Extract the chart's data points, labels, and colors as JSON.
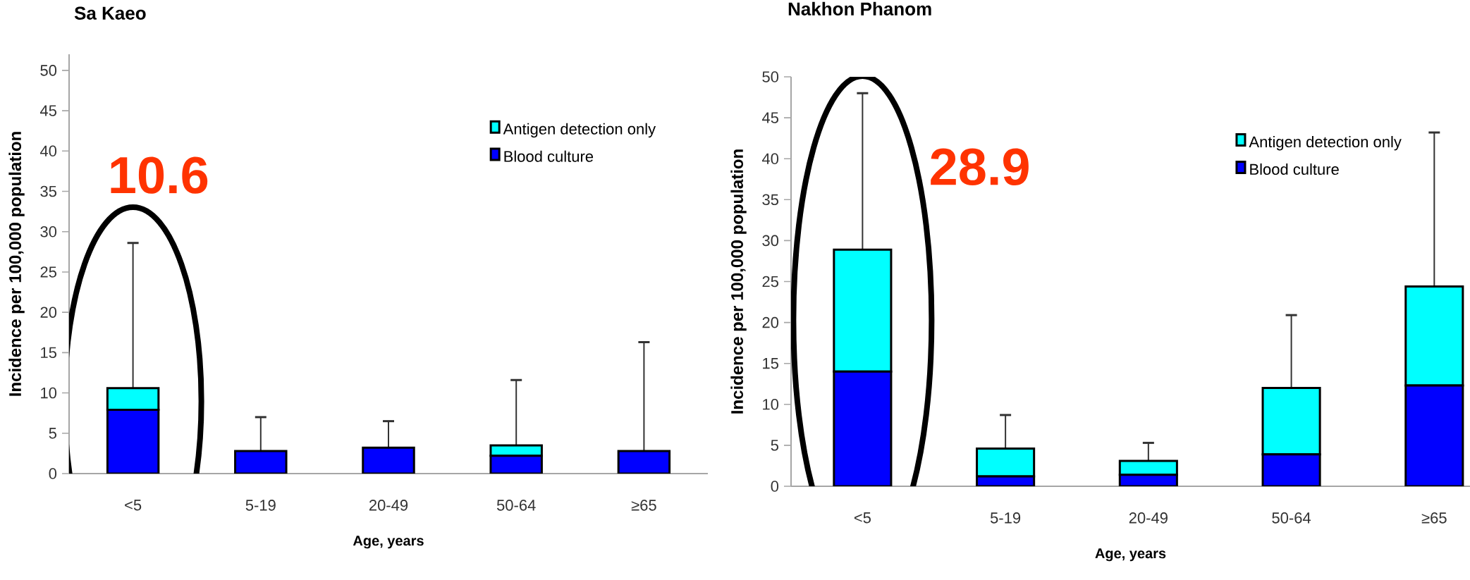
{
  "chart_data": [
    {
      "type": "bar",
      "title": "Sa Kaeo",
      "xlabel": "Age, years",
      "ylabel": "Incidence per 100,000 population",
      "stacked": true,
      "legend": "top right",
      "categories": [
        "<5",
        "5-19",
        "20-49",
        "50-64",
        "≥65"
      ],
      "series": [
        {
          "name": "Blood culture",
          "color": "#0000ff",
          "values": [
            7.9,
            2.8,
            3.2,
            2.2,
            2.8
          ]
        },
        {
          "name": "Antigen detection only",
          "color": "#00ffff",
          "values": [
            2.7,
            0,
            0,
            1.3,
            0
          ],
          "errors": [
            [
              10.6,
              28.6
            ],
            [
              2.8,
              7.0
            ],
            [
              3.2,
              6.5
            ],
            [
              3.5,
              11.6
            ],
            [
              2.8,
              16.3
            ]
          ]
        }
      ],
      "ylim": [
        0,
        52
      ],
      "yticks": [
        0,
        5,
        10,
        15,
        20,
        25,
        30,
        35,
        40,
        45,
        50
      ],
      "annotations": [
        "10.6"
      ]
    },
    {
      "type": "bar",
      "title": "Nakhon Phanom",
      "xlabel": "Age, years",
      "ylabel": "Incidence per 100,000 population",
      "stacked": true,
      "legend": "top right",
      "categories": [
        "<5",
        "5-19",
        "20-49",
        "50-64",
        "≥65"
      ],
      "series": [
        {
          "name": "Blood culture",
          "color": "#0000ff",
          "values": [
            14.0,
            1.2,
            1.4,
            3.9,
            12.3
          ]
        },
        {
          "name": "Antigen detection only",
          "color": "#00ffff",
          "values": [
            14.9,
            3.4,
            1.7,
            8.1,
            12.1
          ],
          "errors": [
            [
              28.9,
              48.0
            ],
            [
              4.6,
              8.7
            ],
            [
              3.1,
              5.3
            ],
            [
              12.0,
              20.9
            ],
            [
              24.4,
              43.2
            ]
          ]
        }
      ],
      "ylim": [
        0,
        50
      ],
      "yticks": [
        0,
        5,
        10,
        15,
        20,
        25,
        30,
        35,
        40,
        45,
        50
      ],
      "annotations": [
        "28.9"
      ]
    }
  ]
}
